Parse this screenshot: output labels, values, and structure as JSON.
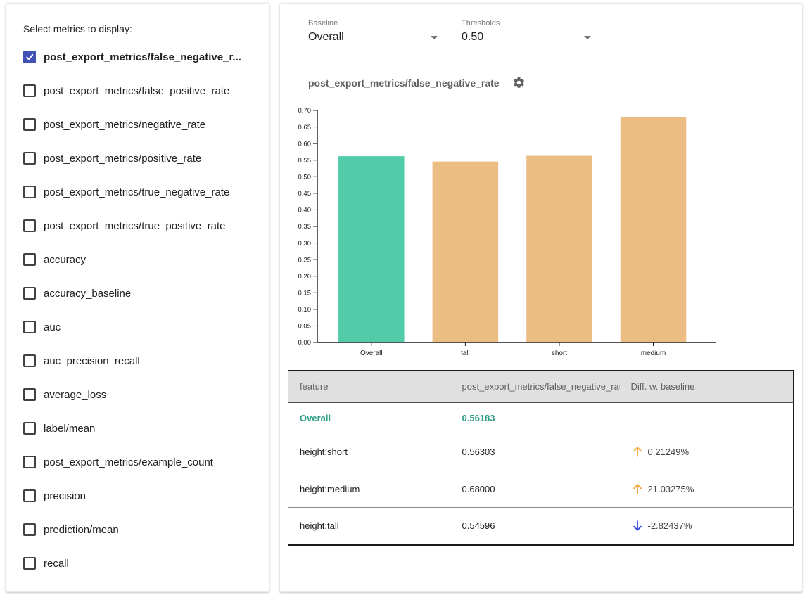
{
  "sidebar": {
    "title": "Select metrics to display:",
    "metrics": [
      {
        "label": "post_export_metrics/false_negative_r...",
        "checked": true
      },
      {
        "label": "post_export_metrics/false_positive_rate",
        "checked": false
      },
      {
        "label": "post_export_metrics/negative_rate",
        "checked": false
      },
      {
        "label": "post_export_metrics/positive_rate",
        "checked": false
      },
      {
        "label": "post_export_metrics/true_negative_rate",
        "checked": false
      },
      {
        "label": "post_export_metrics/true_positive_rate",
        "checked": false
      },
      {
        "label": "accuracy",
        "checked": false
      },
      {
        "label": "accuracy_baseline",
        "checked": false
      },
      {
        "label": "auc",
        "checked": false
      },
      {
        "label": "auc_precision_recall",
        "checked": false
      },
      {
        "label": "average_loss",
        "checked": false
      },
      {
        "label": "label/mean",
        "checked": false
      },
      {
        "label": "post_export_metrics/example_count",
        "checked": false
      },
      {
        "label": "precision",
        "checked": false
      },
      {
        "label": "prediction/mean",
        "checked": false
      },
      {
        "label": "recall",
        "checked": false
      }
    ]
  },
  "controls": {
    "baseline": {
      "label": "Baseline",
      "value": "Overall"
    },
    "thresholds": {
      "label": "Thresholds",
      "value": "0.50"
    }
  },
  "chart": {
    "title": "post_export_metrics/false_negative_rate"
  },
  "chart_data": {
    "type": "bar",
    "categories": [
      "Overall",
      "tall",
      "short",
      "medium"
    ],
    "values": [
      0.56183,
      0.54596,
      0.56303,
      0.68
    ],
    "bar_colors": [
      "#52cba9",
      "#ecbd82",
      "#ecbd82",
      "#ecbd82"
    ],
    "title": "post_export_metrics/false_negative_rate",
    "xlabel": "",
    "ylabel": "",
    "ylim": [
      0,
      0.7
    ],
    "ytick_step": 0.05,
    "grid": false,
    "legend": false
  },
  "table": {
    "headers": [
      "feature",
      "post_export_metrics/false_negative_rat...",
      "Diff. w. baseline"
    ],
    "rows": [
      {
        "feature": "Overall",
        "value": "0.56183",
        "diff": "",
        "arrow": "",
        "highlight": true
      },
      {
        "feature": "height:short",
        "value": "0.56303",
        "diff": "0.21249%",
        "arrow": "up",
        "highlight": false
      },
      {
        "feature": "height:medium",
        "value": "0.68000",
        "diff": "21.03275%",
        "arrow": "up",
        "highlight": false
      },
      {
        "feature": "height:tall",
        "value": "0.54596",
        "diff": "-2.82437%",
        "arrow": "down",
        "highlight": false
      }
    ]
  },
  "colors": {
    "checkbox_checked": "#3f51b5",
    "bar_baseline": "#52cba9",
    "bar_slice": "#ecbd82",
    "highlight_text": "#2f9e87",
    "arrow_up": "#f2a73b",
    "arrow_down": "#3b50dd",
    "axis": "#1a1a1a"
  }
}
